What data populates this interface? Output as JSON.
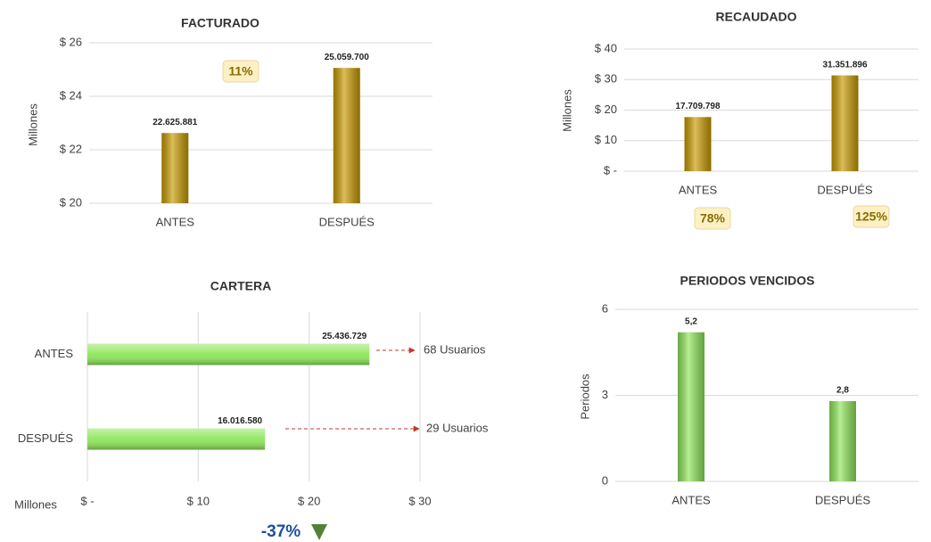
{
  "chart_data": [
    {
      "type": "bar",
      "title": "FACTURADO",
      "y_label": "Millones",
      "categories": [
        "ANTES",
        "DESPUÉS"
      ],
      "values": [
        22.625881,
        25.0597
      ],
      "value_labels": [
        "22.625.881",
        "25.059.700"
      ],
      "color": "#c89a00",
      "ylim": [
        20,
        26
      ],
      "yticks": [
        {
          "value": 20,
          "label": "$ 20"
        },
        {
          "value": 22,
          "label": "$ 22"
        },
        {
          "value": 24,
          "label": "$ 24"
        },
        {
          "value": 26,
          "label": "$ 26"
        }
      ],
      "grid": true,
      "annotations": [
        "11%"
      ]
    },
    {
      "type": "bar",
      "title": "RECAUDADO",
      "y_label": "Millones",
      "categories": [
        "ANTES",
        "DESPUÉS"
      ],
      "values": [
        17.709798,
        31.351896
      ],
      "value_labels": [
        "17.709.798",
        "31.351.896"
      ],
      "color": "#c89a00",
      "ylim": [
        0,
        40
      ],
      "yticks": [
        {
          "value": 0,
          "label": "$ -"
        },
        {
          "value": 10,
          "label": "$ 10"
        },
        {
          "value": 20,
          "label": "$ 20"
        },
        {
          "value": 30,
          "label": "$ 30"
        },
        {
          "value": 40,
          "label": "$ 40"
        }
      ],
      "grid": true,
      "annotations": [
        "78%",
        "125%"
      ]
    },
    {
      "type": "hbar",
      "title": "CARTERA",
      "x_label": "Millones",
      "categories": [
        "ANTES",
        "DESPUÉS"
      ],
      "values": [
        25.436729,
        16.01658
      ],
      "value_labels": [
        "25.436.729",
        "16.016.580"
      ],
      "color": "#8ee65a",
      "xlim": [
        0,
        30
      ],
      "xticks": [
        {
          "value": 0,
          "label": "$ -"
        },
        {
          "value": 10,
          "label": "$ 10"
        },
        {
          "value": 20,
          "label": "$ 20"
        },
        {
          "value": 30,
          "label": "$ 30"
        }
      ],
      "grid": true,
      "annotations": [
        "68 Usuarios",
        "29 Usuarios",
        "-37%"
      ]
    },
    {
      "type": "bar",
      "title": "PERIODOS VENCIDOS",
      "y_label": "Periodos",
      "categories": [
        "ANTES",
        "DESPUÉS"
      ],
      "values": [
        5.2,
        2.8
      ],
      "value_labels": [
        "5,2",
        "2,8"
      ],
      "color": "#8ee65a",
      "ylim": [
        0,
        6
      ],
      "yticks": [
        0,
        3,
        6
      ],
      "grid": true,
      "annotations": []
    }
  ]
}
